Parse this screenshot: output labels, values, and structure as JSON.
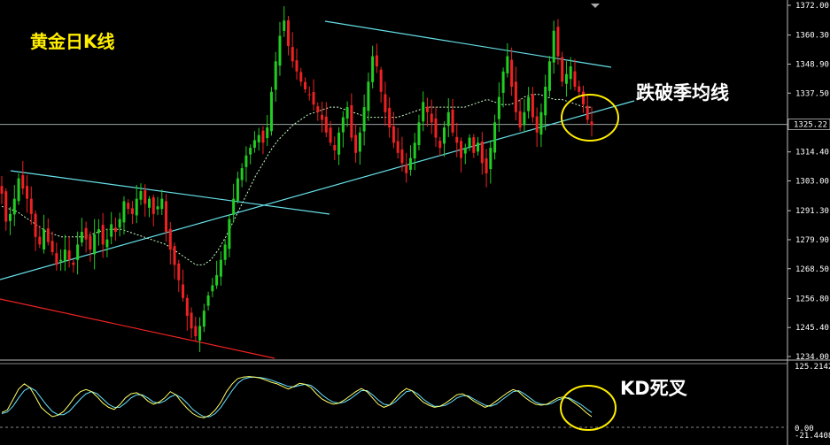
{
  "chart_data": {
    "type": "candlestick",
    "title": "黄金日K线",
    "annotations": {
      "break_label": "跌破季均线",
      "kd_label": "KD死叉"
    },
    "price_axis": {
      "ylim": [
        1234.0,
        1372.0
      ],
      "tick_labels": [
        "1372.00",
        "1360.30",
        "1348.90",
        "1337.50",
        "1314.40",
        "1303.00",
        "1291.30",
        "1279.90",
        "1268.50",
        "1256.80",
        "1245.40",
        "1234.00"
      ],
      "current_price_label": "1325.22"
    },
    "kd_axis": {
      "tick_labels": [
        "125.2142",
        "0.00",
        "-21.4408"
      ]
    },
    "colors": {
      "bull": "#22cc22",
      "bear": "#ee2222",
      "trend_line": "#66e0e8",
      "lower_channel": "#ee2222",
      "ma_line": "#ccffcc",
      "k_line": "#ffff66",
      "d_line": "#66e0ff",
      "highlight_circle": "#ffee00"
    },
    "series_close": [
      1298,
      1287,
      1290,
      1296,
      1304,
      1300,
      1296,
      1290,
      1281,
      1278,
      1284,
      1279,
      1275,
      1270,
      1272,
      1276,
      1272,
      1270,
      1278,
      1283,
      1280,
      1276,
      1282,
      1284,
      1278,
      1280,
      1286,
      1283,
      1288,
      1295,
      1292,
      1290,
      1296,
      1299,
      1294,
      1296,
      1290,
      1293,
      1296,
      1283,
      1276,
      1270,
      1264,
      1257,
      1250,
      1245,
      1242,
      1246,
      1252,
      1258,
      1262,
      1266,
      1272,
      1278,
      1288,
      1296,
      1304,
      1308,
      1313,
      1316,
      1319,
      1321,
      1318,
      1324,
      1338,
      1350,
      1360,
      1366,
      1356,
      1350,
      1346,
      1342,
      1339,
      1337,
      1333,
      1330,
      1327,
      1322,
      1318,
      1315,
      1322,
      1328,
      1332,
      1320,
      1314,
      1322,
      1332,
      1342,
      1352,
      1348,
      1338,
      1330,
      1324,
      1318,
      1314,
      1310,
      1306,
      1312,
      1318,
      1326,
      1334,
      1330,
      1326,
      1320,
      1316,
      1324,
      1330,
      1322,
      1318,
      1312,
      1316,
      1320,
      1314,
      1318,
      1310,
      1306,
      1316,
      1326,
      1336,
      1346,
      1352,
      1340,
      1330,
      1324,
      1330,
      1336,
      1328,
      1322,
      1330,
      1340,
      1350,
      1362,
      1352,
      1342,
      1345,
      1348,
      1340,
      1338,
      1333,
      1327,
      1325
    ],
    "ma_series": [
      1293,
      1292,
      1291,
      1289,
      1287,
      1285,
      1283,
      1282,
      1281,
      1281,
      1281,
      1281,
      1282,
      1283,
      1284,
      1284,
      1284,
      1283,
      1282,
      1281,
      1280,
      1279,
      1278,
      1276,
      1274,
      1272,
      1270,
      1270,
      1272,
      1276,
      1281,
      1287,
      1293,
      1299,
      1305,
      1310,
      1315,
      1319,
      1322,
      1325,
      1327,
      1329,
      1330,
      1331,
      1332,
      1332,
      1331,
      1330,
      1329,
      1328,
      1328,
      1328,
      1328,
      1328,
      1329,
      1330,
      1331,
      1332,
      1332,
      1332,
      1332,
      1332,
      1332,
      1333,
      1334,
      1335,
      1334,
      1333,
      1333,
      1334,
      1336,
      1337,
      1337,
      1336,
      1335,
      1335,
      1334,
      1333,
      1332,
      1332
    ],
    "kd_k": [
      30,
      35,
      55,
      75,
      85,
      78,
      60,
      40,
      30,
      22,
      25,
      32,
      45,
      60,
      70,
      74,
      70,
      60,
      48,
      40,
      36,
      45,
      58,
      66,
      68,
      62,
      52,
      46,
      50,
      58,
      70,
      64,
      50,
      38,
      28,
      22,
      20,
      25,
      35,
      50,
      70,
      85,
      95,
      98,
      99,
      98,
      96,
      92,
      88,
      85,
      80,
      75,
      80,
      86,
      84,
      78,
      66,
      56,
      50,
      46,
      48,
      54,
      62,
      70,
      76,
      70,
      58,
      46,
      40,
      44,
      56,
      68,
      76,
      72,
      60,
      50,
      44,
      40,
      42,
      48,
      56,
      64,
      66,
      60,
      52,
      46,
      40,
      44,
      52,
      60,
      68,
      74,
      70,
      60,
      52,
      46,
      44,
      46,
      52,
      58,
      60,
      56,
      48,
      40,
      30,
      22
    ],
    "kd_d": [
      28,
      31,
      42,
      58,
      72,
      78,
      72,
      58,
      44,
      32,
      26,
      26,
      32,
      44,
      56,
      66,
      70,
      66,
      56,
      46,
      40,
      40,
      48,
      58,
      64,
      64,
      58,
      50,
      48,
      52,
      60,
      64,
      58,
      48,
      36,
      28,
      22,
      22,
      28,
      40,
      56,
      72,
      86,
      94,
      97,
      98,
      97,
      95,
      92,
      88,
      84,
      80,
      79,
      82,
      84,
      82,
      74,
      64,
      56,
      50,
      48,
      50,
      56,
      64,
      72,
      72,
      64,
      54,
      46,
      44,
      50,
      60,
      70,
      72,
      66,
      56,
      48,
      42,
      42,
      44,
      50,
      58,
      62,
      62,
      56,
      50,
      44,
      42,
      46,
      54,
      62,
      70,
      72,
      66,
      58,
      50,
      46,
      45,
      48,
      54,
      58,
      58,
      52,
      46,
      38,
      30
    ]
  }
}
